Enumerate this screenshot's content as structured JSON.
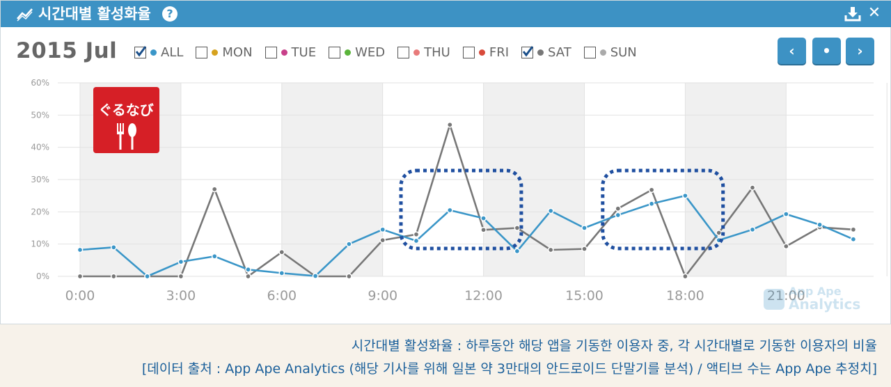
{
  "header": {
    "title": "시간대별 활성화율",
    "help_label": "?",
    "close_label": "✕"
  },
  "date_label": "2015 Jul",
  "filters": [
    {
      "label": "ALL",
      "checked": true,
      "color": "#3a96c8"
    },
    {
      "label": "MON",
      "checked": false,
      "color": "#d6a21e"
    },
    {
      "label": "TUE",
      "checked": false,
      "color": "#c8408a"
    },
    {
      "label": "WED",
      "checked": false,
      "color": "#5ab43a"
    },
    {
      "label": "THU",
      "checked": false,
      "color": "#e87a7a"
    },
    {
      "label": "FRI",
      "checked": false,
      "color": "#d84a3a"
    },
    {
      "label": "SAT",
      "checked": true,
      "color": "#777777"
    },
    {
      "label": "SUN",
      "checked": false,
      "color": "#aaaaaa"
    }
  ],
  "nav": {
    "prev": "‹",
    "current": "•",
    "next": "›"
  },
  "logo_text": "ぐるなび",
  "watermark": {
    "line1": "App Ape",
    "line2": "Analytics"
  },
  "chart_data": {
    "type": "line",
    "x": [
      0,
      1,
      2,
      3,
      4,
      5,
      6,
      7,
      8,
      9,
      10,
      11,
      12,
      13,
      14,
      15,
      16,
      17,
      18,
      19,
      20,
      21,
      22,
      23
    ],
    "xticks": [
      "0:00",
      "3:00",
      "6:00",
      "9:00",
      "12:00",
      "15:00",
      "18:00",
      "21:00"
    ],
    "ytick_labels": [
      "0%",
      "10%",
      "20%",
      "30%",
      "40%",
      "50%",
      "60%"
    ],
    "ylim": [
      0,
      60
    ],
    "series": [
      {
        "name": "ALL",
        "color": "#3a96c8",
        "values": [
          8.2,
          9.0,
          0.0,
          4.5,
          6.2,
          2.1,
          1.0,
          0.1,
          10.0,
          14.5,
          11.0,
          20.5,
          18.0,
          7.8,
          20.3,
          15.0,
          19.0,
          22.5,
          25.0,
          11.2,
          14.5,
          19.3,
          16.0,
          11.5
        ]
      },
      {
        "name": "SAT",
        "color": "#777777",
        "values": [
          0.0,
          0.0,
          0.0,
          0.0,
          27.0,
          0.0,
          7.5,
          0.0,
          0.0,
          11.2,
          13.0,
          47.0,
          14.4,
          15.0,
          8.2,
          8.5,
          21.0,
          26.8,
          0.0,
          13.5,
          27.5,
          9.3,
          15.2,
          14.5
        ]
      }
    ],
    "grid": true,
    "shaded_bands": [
      [
        0,
        3
      ],
      [
        6,
        9
      ],
      [
        12,
        15
      ],
      [
        18,
        21
      ]
    ],
    "highlights": [
      [
        10,
        13
      ],
      [
        16,
        19
      ]
    ]
  },
  "captions": {
    "line1": "시간대별 활성화율 : 하루동안 해당 앱을 기동한 이용자 중, 각 시간대별로 기동한 이용자의 비율",
    "line2": "[데이터 출처 : App Ape Analytics (해당 기사를 위해 일본 약 3만대의 안드로이드 단말기를 분석) / 액티브 수는 App Ape 추정치]"
  }
}
